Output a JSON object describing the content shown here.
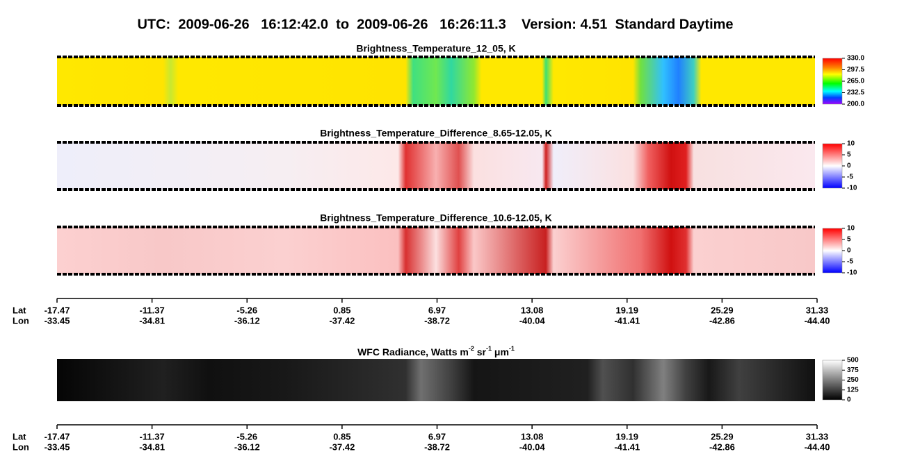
{
  "title": "UTC:  2009-06-26   16:12:42.0  to  2009-06-26   16:26:11.3    Version: 4.51  Standard Daytime",
  "panels": [
    {
      "title": "Brightness_Temperature_12_05, K",
      "colorbar": [
        "330.0",
        "297.5",
        "265.0",
        "232.5",
        "200.0"
      ]
    },
    {
      "title": "Brightness_Temperature_Difference_8.65-12.05, K",
      "colorbar": [
        "10",
        "5",
        "0",
        "-5",
        "-10"
      ]
    },
    {
      "title": "Brightness_Temperature_Difference_10.6-12.05, K",
      "colorbar": [
        "10",
        "5",
        "0",
        "-5",
        "-10"
      ]
    },
    {
      "title_parts": [
        "WFC Radiance, Watts m",
        "-2",
        " sr",
        "-1",
        " μm",
        "-1"
      ],
      "colorbar": [
        "500",
        "375",
        "250",
        "125",
        "0"
      ]
    }
  ],
  "axes": [
    {
      "lat_label": "Lat",
      "lon_label": "Lon",
      "lat": [
        "-17.47",
        "-11.37",
        "-5.26",
        "0.85",
        "6.97",
        "13.08",
        "19.19",
        "25.29",
        "31.33"
      ],
      "lon": [
        "-33.45",
        "-34.81",
        "-36.12",
        "-37.42",
        "-38.72",
        "-40.04",
        "-41.41",
        "-42.86",
        "-44.40"
      ]
    },
    {
      "lat_label": "Lat",
      "lon_label": "Lon",
      "lat": [
        "-17.47",
        "-11.37",
        "-5.26",
        "0.85",
        "6.97",
        "13.08",
        "19.19",
        "25.29",
        "31.33"
      ],
      "lon": [
        "-33.45",
        "-34.81",
        "-36.12",
        "-37.42",
        "-38.72",
        "-40.04",
        "-41.41",
        "-42.86",
        "-44.40"
      ]
    }
  ]
}
